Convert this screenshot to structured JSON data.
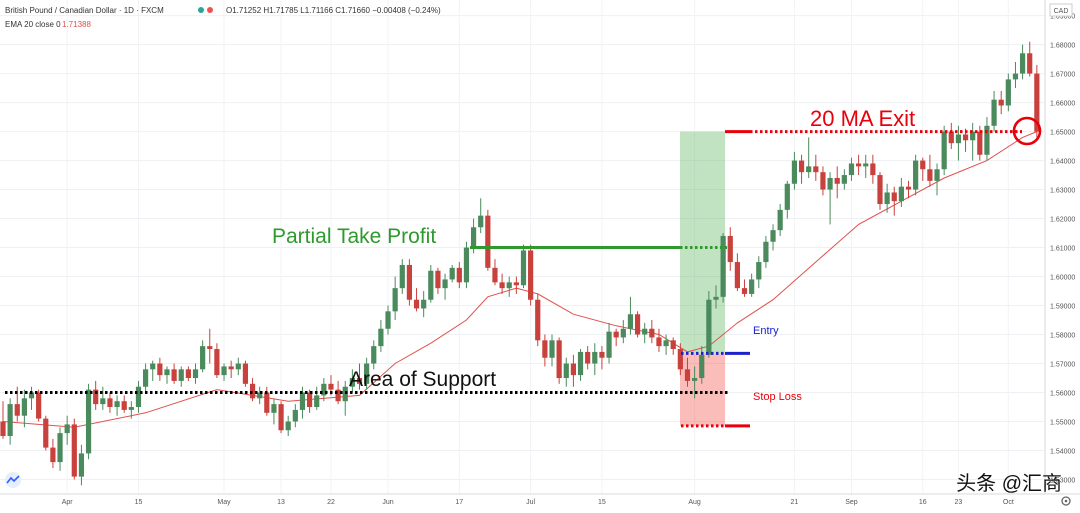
{
  "header": {
    "symbol": "British Pound / Canadian Dollar · 1D · FXCM",
    "ohlc": "O1.71252 H1.71785 L1.71166 C1.71660 −0.00408 (−0.24%)",
    "ema_label": "EMA 20 close 0",
    "ema_value": "1.71388",
    "currency": "CAD"
  },
  "annotations": {
    "partial_take_profit": "Partial Take Profit",
    "area_of_support": "Area of Support",
    "ma_exit": "20 MA Exit",
    "entry": "Entry",
    "stop_loss": "Stop Loss"
  },
  "watermark": "头条 @汇商",
  "colors": {
    "up": "#4a8a5c",
    "down": "#c9413c",
    "ema": "#e0504c",
    "support": "#000000",
    "take_profit": "#2e9a2e",
    "exit": "#e8000b",
    "entry": "#1e22cc",
    "stop_loss": "#e8000b"
  },
  "chart_data": {
    "type": "candlestick",
    "ylim": [
      1.525,
      1.694
    ],
    "y_ticks": [
      "1.53000",
      "1.54000",
      "1.55000",
      "1.56000",
      "1.57000",
      "1.58000",
      "1.59000",
      "1.60000",
      "1.61000",
      "1.62000",
      "1.63000",
      "1.64000",
      "1.65000",
      "1.66000",
      "1.67000",
      "1.68000",
      "1.69000"
    ],
    "x_ticks": [
      {
        "label": "Apr",
        "index": 9
      },
      {
        "label": "15",
        "index": 19
      },
      {
        "label": "May",
        "index": 31
      },
      {
        "label": "13",
        "index": 39
      },
      {
        "label": "22",
        "index": 46
      },
      {
        "label": "Jun",
        "index": 54
      },
      {
        "label": "17",
        "index": 64
      },
      {
        "label": "Jul",
        "index": 74
      },
      {
        "label": "15",
        "index": 84
      },
      {
        "label": "Aug",
        "index": 97
      },
      {
        "label": "21",
        "index": 111
      },
      {
        "label": "Sep",
        "index": 119
      },
      {
        "label": "16",
        "index": 129
      },
      {
        "label": "23",
        "index": 134
      },
      {
        "label": "Oct",
        "index": 141
      }
    ],
    "candles": [
      [
        1.55,
        1.557,
        1.544,
        1.545
      ],
      [
        1.545,
        1.558,
        1.542,
        1.556
      ],
      [
        1.556,
        1.562,
        1.55,
        1.552
      ],
      [
        1.552,
        1.561,
        1.548,
        1.558
      ],
      [
        1.558,
        1.562,
        1.554,
        1.56
      ],
      [
        1.56,
        1.561,
        1.55,
        1.551
      ],
      [
        1.551,
        1.552,
        1.54,
        1.541
      ],
      [
        1.541,
        1.544,
        1.534,
        1.536
      ],
      [
        1.536,
        1.548,
        1.533,
        1.546
      ],
      [
        1.546,
        1.552,
        1.542,
        1.549
      ],
      [
        1.549,
        1.551,
        1.53,
        1.531
      ],
      [
        1.531,
        1.542,
        1.528,
        1.539
      ],
      [
        1.539,
        1.563,
        1.537,
        1.561
      ],
      [
        1.561,
        1.564,
        1.554,
        1.556
      ],
      [
        1.556,
        1.562,
        1.554,
        1.558
      ],
      [
        1.558,
        1.56,
        1.553,
        1.555
      ],
      [
        1.555,
        1.559,
        1.552,
        1.557
      ],
      [
        1.557,
        1.559,
        1.553,
        1.554
      ],
      [
        1.554,
        1.557,
        1.551,
        1.555
      ],
      [
        1.555,
        1.564,
        1.553,
        1.562
      ],
      [
        1.562,
        1.57,
        1.56,
        1.568
      ],
      [
        1.568,
        1.571,
        1.564,
        1.57
      ],
      [
        1.57,
        1.572,
        1.564,
        1.566
      ],
      [
        1.566,
        1.569,
        1.563,
        1.568
      ],
      [
        1.568,
        1.57,
        1.563,
        1.564
      ],
      [
        1.564,
        1.569,
        1.562,
        1.568
      ],
      [
        1.568,
        1.569,
        1.564,
        1.565
      ],
      [
        1.565,
        1.57,
        1.563,
        1.568
      ],
      [
        1.568,
        1.578,
        1.567,
        1.576
      ],
      [
        1.576,
        1.582,
        1.57,
        1.575
      ],
      [
        1.575,
        1.577,
        1.565,
        1.566
      ],
      [
        1.566,
        1.57,
        1.564,
        1.569
      ],
      [
        1.569,
        1.571,
        1.565,
        1.568
      ],
      [
        1.568,
        1.572,
        1.566,
        1.57
      ],
      [
        1.57,
        1.571,
        1.562,
        1.563
      ],
      [
        1.563,
        1.565,
        1.557,
        1.558
      ],
      [
        1.558,
        1.562,
        1.556,
        1.56
      ],
      [
        1.56,
        1.562,
        1.552,
        1.553
      ],
      [
        1.553,
        1.558,
        1.549,
        1.556
      ],
      [
        1.556,
        1.557,
        1.546,
        1.547
      ],
      [
        1.547,
        1.552,
        1.545,
        1.55
      ],
      [
        1.55,
        1.556,
        1.548,
        1.554
      ],
      [
        1.554,
        1.562,
        1.551,
        1.56
      ],
      [
        1.56,
        1.561,
        1.553,
        1.555
      ],
      [
        1.555,
        1.562,
        1.554,
        1.559
      ],
      [
        1.559,
        1.565,
        1.557,
        1.563
      ],
      [
        1.563,
        1.566,
        1.559,
        1.561
      ],
      [
        1.561,
        1.564,
        1.556,
        1.557
      ],
      [
        1.557,
        1.564,
        1.552,
        1.562
      ],
      [
        1.562,
        1.568,
        1.56,
        1.565
      ],
      [
        1.565,
        1.57,
        1.561,
        1.563
      ],
      [
        1.563,
        1.572,
        1.561,
        1.57
      ],
      [
        1.57,
        1.578,
        1.568,
        1.576
      ],
      [
        1.576,
        1.585,
        1.574,
        1.582
      ],
      [
        1.582,
        1.59,
        1.58,
        1.588
      ],
      [
        1.588,
        1.6,
        1.585,
        1.596
      ],
      [
        1.596,
        1.606,
        1.594,
        1.604
      ],
      [
        1.604,
        1.606,
        1.59,
        1.592
      ],
      [
        1.592,
        1.596,
        1.588,
        1.589
      ],
      [
        1.589,
        1.595,
        1.586,
        1.592
      ],
      [
        1.592,
        1.604,
        1.591,
        1.602
      ],
      [
        1.602,
        1.603,
        1.594,
        1.596
      ],
      [
        1.596,
        1.601,
        1.592,
        1.599
      ],
      [
        1.599,
        1.604,
        1.598,
        1.603
      ],
      [
        1.603,
        1.605,
        1.596,
        1.598
      ],
      [
        1.598,
        1.612,
        1.596,
        1.61
      ],
      [
        1.61,
        1.62,
        1.608,
        1.617
      ],
      [
        1.617,
        1.627,
        1.615,
        1.621
      ],
      [
        1.621,
        1.623,
        1.602,
        1.603
      ],
      [
        1.603,
        1.606,
        1.597,
        1.598
      ],
      [
        1.598,
        1.601,
        1.594,
        1.596
      ],
      [
        1.596,
        1.6,
        1.593,
        1.598
      ],
      [
        1.598,
        1.6,
        1.594,
        1.597
      ],
      [
        1.597,
        1.611,
        1.596,
        1.609
      ],
      [
        1.609,
        1.611,
        1.59,
        1.592
      ],
      [
        1.592,
        1.594,
        1.576,
        1.578
      ],
      [
        1.578,
        1.58,
        1.569,
        1.572
      ],
      [
        1.572,
        1.58,
        1.569,
        1.578
      ],
      [
        1.578,
        1.579,
        1.563,
        1.565
      ],
      [
        1.565,
        1.572,
        1.562,
        1.57
      ],
      [
        1.57,
        1.573,
        1.562,
        1.566
      ],
      [
        1.566,
        1.575,
        1.564,
        1.574
      ],
      [
        1.574,
        1.576,
        1.568,
        1.57
      ],
      [
        1.57,
        1.577,
        1.566,
        1.574
      ],
      [
        1.574,
        1.576,
        1.568,
        1.572
      ],
      [
        1.572,
        1.584,
        1.57,
        1.581
      ],
      [
        1.581,
        1.582,
        1.576,
        1.579
      ],
      [
        1.579,
        1.585,
        1.577,
        1.582
      ],
      [
        1.582,
        1.593,
        1.58,
        1.587
      ],
      [
        1.587,
        1.588,
        1.579,
        1.58
      ],
      [
        1.58,
        1.584,
        1.577,
        1.582
      ],
      [
        1.582,
        1.585,
        1.577,
        1.579
      ],
      [
        1.579,
        1.582,
        1.574,
        1.576
      ],
      [
        1.576,
        1.58,
        1.573,
        1.578
      ],
      [
        1.578,
        1.579,
        1.573,
        1.575
      ],
      [
        1.575,
        1.577,
        1.566,
        1.568
      ],
      [
        1.568,
        1.572,
        1.562,
        1.564
      ],
      [
        1.564,
        1.569,
        1.558,
        1.565
      ],
      [
        1.565,
        1.576,
        1.563,
        1.573
      ],
      [
        1.573,
        1.595,
        1.572,
        1.592
      ],
      [
        1.592,
        1.597,
        1.589,
        1.593
      ],
      [
        1.593,
        1.615,
        1.591,
        1.614
      ],
      [
        1.614,
        1.617,
        1.602,
        1.605
      ],
      [
        1.605,
        1.608,
        1.595,
        1.596
      ],
      [
        1.596,
        1.599,
        1.593,
        1.594
      ],
      [
        1.594,
        1.601,
        1.593,
        1.599
      ],
      [
        1.599,
        1.607,
        1.596,
        1.605
      ],
      [
        1.605,
        1.614,
        1.603,
        1.612
      ],
      [
        1.612,
        1.618,
        1.609,
        1.616
      ],
      [
        1.616,
        1.625,
        1.614,
        1.623
      ],
      [
        1.623,
        1.633,
        1.62,
        1.632
      ],
      [
        1.632,
        1.643,
        1.63,
        1.64
      ],
      [
        1.64,
        1.642,
        1.632,
        1.636
      ],
      [
        1.636,
        1.648,
        1.634,
        1.638
      ],
      [
        1.638,
        1.642,
        1.633,
        1.636
      ],
      [
        1.636,
        1.638,
        1.628,
        1.63
      ],
      [
        1.63,
        1.636,
        1.618,
        1.634
      ],
      [
        1.634,
        1.638,
        1.627,
        1.632
      ],
      [
        1.632,
        1.637,
        1.63,
        1.635
      ],
      [
        1.635,
        1.641,
        1.633,
        1.639
      ],
      [
        1.639,
        1.642,
        1.635,
        1.638
      ],
      [
        1.638,
        1.642,
        1.634,
        1.639
      ],
      [
        1.639,
        1.642,
        1.632,
        1.635
      ],
      [
        1.635,
        1.636,
        1.623,
        1.625
      ],
      [
        1.625,
        1.632,
        1.622,
        1.629
      ],
      [
        1.629,
        1.631,
        1.621,
        1.626
      ],
      [
        1.626,
        1.634,
        1.624,
        1.631
      ],
      [
        1.631,
        1.633,
        1.627,
        1.63
      ],
      [
        1.63,
        1.642,
        1.628,
        1.64
      ],
      [
        1.64,
        1.641,
        1.633,
        1.637
      ],
      [
        1.637,
        1.642,
        1.631,
        1.633
      ],
      [
        1.633,
        1.639,
        1.628,
        1.637
      ],
      [
        1.637,
        1.652,
        1.635,
        1.65
      ],
      [
        1.65,
        1.653,
        1.644,
        1.646
      ],
      [
        1.646,
        1.652,
        1.64,
        1.649
      ],
      [
        1.649,
        1.651,
        1.643,
        1.647
      ],
      [
        1.647,
        1.653,
        1.64,
        1.65
      ],
      [
        1.65,
        1.652,
        1.64,
        1.642
      ],
      [
        1.642,
        1.655,
        1.64,
        1.652
      ],
      [
        1.652,
        1.664,
        1.65,
        1.661
      ],
      [
        1.661,
        1.664,
        1.656,
        1.659
      ],
      [
        1.659,
        1.67,
        1.657,
        1.668
      ],
      [
        1.668,
        1.674,
        1.665,
        1.67
      ],
      [
        1.67,
        1.68,
        1.668,
        1.677
      ],
      [
        1.677,
        1.681,
        1.669,
        1.67
      ],
      [
        1.67,
        1.673,
        1.648,
        1.65
      ]
    ],
    "ema20": [
      [
        0,
        1.55
      ],
      [
        10,
        1.548
      ],
      [
        20,
        1.553
      ],
      [
        30,
        1.561
      ],
      [
        40,
        1.557
      ],
      [
        50,
        1.559
      ],
      [
        55,
        1.57
      ],
      [
        60,
        1.577
      ],
      [
        65,
        1.585
      ],
      [
        68,
        1.593
      ],
      [
        72,
        1.596
      ],
      [
        75,
        1.594
      ],
      [
        80,
        1.587
      ],
      [
        86,
        1.583
      ],
      [
        92,
        1.58
      ],
      [
        96,
        1.574
      ],
      [
        99,
        1.576
      ],
      [
        103,
        1.584
      ],
      [
        108,
        1.592
      ],
      [
        114,
        1.605
      ],
      [
        120,
        1.618
      ],
      [
        126,
        1.626
      ],
      [
        132,
        1.634
      ],
      [
        138,
        1.64
      ],
      [
        143,
        1.648
      ],
      [
        145,
        1.65
      ]
    ],
    "levels": {
      "support": 1.56,
      "partial_take_profit": 1.61,
      "ma_exit": 1.65,
      "entry": 1.5735,
      "stop_loss": 1.5485,
      "reward_zone": [
        1.5735,
        1.65
      ],
      "risk_zone": [
        1.5485,
        1.5735
      ]
    }
  }
}
